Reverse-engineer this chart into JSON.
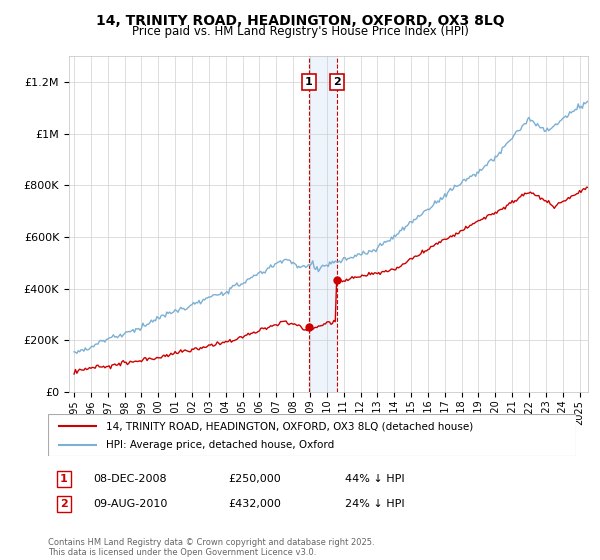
{
  "title": "14, TRINITY ROAD, HEADINGTON, OXFORD, OX3 8LQ",
  "subtitle": "Price paid vs. HM Land Registry's House Price Index (HPI)",
  "legend_entries": [
    "14, TRINITY ROAD, HEADINGTON, OXFORD, OX3 8LQ (detached house)",
    "HPI: Average price, detached house, Oxford"
  ],
  "annotation_box_color": "#cc0000",
  "hpi_color": "#7bafd4",
  "price_color": "#cc0000",
  "shaded_color": "#cce0f5",
  "background_color": "#ffffff",
  "ylim": [
    0,
    1300000
  ],
  "yticks": [
    0,
    200000,
    400000,
    600000,
    800000,
    1000000,
    1200000
  ],
  "ylabel_fmt": [
    "£0",
    "£200K",
    "£400K",
    "£600K",
    "£800K",
    "£1M",
    "£1.2M"
  ],
  "copyright_text": "Contains HM Land Registry data © Crown copyright and database right 2025.\nThis data is licensed under the Open Government Licence v3.0.",
  "transaction1_x": 2008.94,
  "transaction2_x": 2010.61,
  "transaction1_y": 250000,
  "transaction2_y": 432000,
  "xmin": 1995,
  "xmax": 2025
}
